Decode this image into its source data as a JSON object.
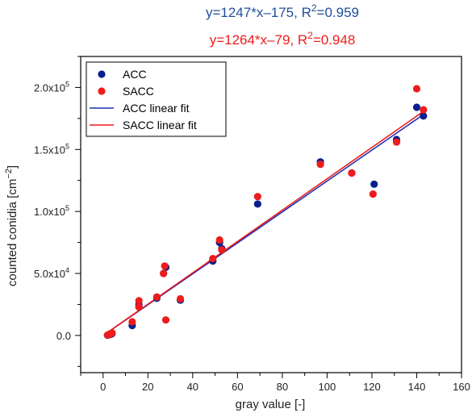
{
  "chart_data": {
    "type": "scatter",
    "equations": [
      {
        "text": "y=1247*x–175, R",
        "sup": "2",
        "tail": "=0.959",
        "color": "#1f4e9c"
      },
      {
        "text": "y=1264*x–79, R",
        "sup": "2",
        "tail": "=0.948",
        "color": "#ee1c1c"
      }
    ],
    "xlabel": "gray value [-]",
    "ylabel_main": "counted conidia [cm",
    "ylabel_sup": "−2",
    "ylabel_close": "]",
    "xlim": [
      -10,
      160
    ],
    "ylim": [
      -30000,
      225000
    ],
    "xticks": [
      0,
      20,
      40,
      60,
      80,
      100,
      120,
      140,
      160
    ],
    "yticks": [
      {
        "value": 0,
        "mant": "0.0",
        "exp": ""
      },
      {
        "value": 50000,
        "mant": "5.0x10",
        "exp": "4"
      },
      {
        "value": 100000,
        "mant": "1.0x10",
        "exp": "5"
      },
      {
        "value": 150000,
        "mant": "1.5x10",
        "exp": "5"
      },
      {
        "value": 200000,
        "mant": "2.0x10",
        "exp": "5"
      }
    ],
    "legend_position": "top-left",
    "series": [
      {
        "name": "ACC",
        "color": "#0a1f8f",
        "points": [
          [
            2,
            200
          ],
          [
            2.5,
            500
          ],
          [
            3,
            800
          ],
          [
            3.5,
            1000
          ],
          [
            4,
            1500
          ],
          [
            13,
            8000
          ],
          [
            16,
            23000
          ],
          [
            16,
            25000
          ],
          [
            24,
            30000
          ],
          [
            27,
            50000
          ],
          [
            28,
            55000
          ],
          [
            34.5,
            28500
          ],
          [
            49,
            60000
          ],
          [
            52,
            75000
          ],
          [
            53,
            70000
          ],
          [
            69,
            106000
          ],
          [
            97,
            140000
          ],
          [
            111,
            131000
          ],
          [
            121,
            122000
          ],
          [
            131,
            158000
          ],
          [
            140,
            184000
          ],
          [
            143,
            177000
          ]
        ]
      },
      {
        "name": "SACC",
        "color": "#ee1c1c",
        "points": [
          [
            2,
            300
          ],
          [
            2.5,
            600
          ],
          [
            3,
            1200
          ],
          [
            3.5,
            1500
          ],
          [
            4,
            2000
          ],
          [
            13,
            11000
          ],
          [
            16,
            28000
          ],
          [
            16,
            23000
          ],
          [
            24,
            31000
          ],
          [
            27,
            50000
          ],
          [
            27.5,
            56000
          ],
          [
            28,
            12500
          ],
          [
            34.5,
            29500
          ],
          [
            49,
            62000
          ],
          [
            52,
            77000
          ],
          [
            53,
            69000
          ],
          [
            69,
            112000
          ],
          [
            97,
            138000
          ],
          [
            111,
            131000
          ],
          [
            120.5,
            114000
          ],
          [
            131,
            156000
          ],
          [
            140,
            199000
          ],
          [
            143,
            182000
          ]
        ]
      }
    ],
    "fits": [
      {
        "name": "ACC linear fit",
        "slope": 1247,
        "intercept": -175,
        "x_range": [
          1.5,
          143
        ],
        "color": "#1f2fb0"
      },
      {
        "name": "SACC linear fit",
        "slope": 1264,
        "intercept": -79,
        "x_range": [
          1.5,
          143
        ],
        "color": "#ee1c1c"
      }
    ]
  }
}
